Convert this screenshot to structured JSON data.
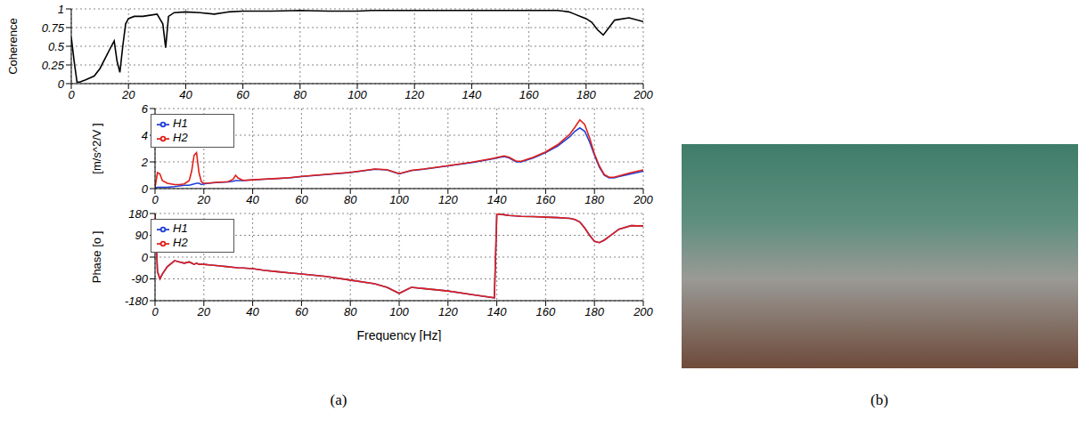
{
  "panel_labels": [
    "(a)",
    "(b)"
  ],
  "chart_data": [
    {
      "type": "line",
      "y_label": "Coherence",
      "xlim": [
        0,
        200
      ],
      "xticks": [
        0,
        20,
        40,
        60,
        80,
        100,
        120,
        140,
        160,
        180,
        200
      ],
      "ylim": [
        0,
        1
      ],
      "yticks": [
        0,
        0.25,
        0.5,
        0.75,
        1
      ],
      "grid": true,
      "x": [
        0,
        1,
        2,
        3,
        5,
        8,
        10,
        12,
        14,
        15,
        16,
        17,
        18,
        19,
        20,
        22,
        25,
        30,
        32,
        33,
        34,
        36,
        40,
        45,
        50,
        55,
        60,
        70,
        80,
        90,
        95,
        100,
        105,
        110,
        120,
        130,
        139,
        140,
        143,
        145,
        148,
        150,
        155,
        160,
        165,
        170,
        172,
        174,
        176,
        178,
        180,
        182,
        184,
        186,
        188,
        190,
        195,
        200
      ],
      "series": [
        {
          "color": "#000000",
          "values": [
            0.62,
            0.3,
            0.02,
            0.02,
            0.05,
            0.1,
            0.2,
            0.35,
            0.5,
            0.57,
            0.3,
            0.15,
            0.5,
            0.8,
            0.87,
            0.9,
            0.9,
            0.93,
            0.8,
            0.48,
            0.9,
            0.95,
            0.96,
            0.95,
            0.93,
            0.96,
            0.97,
            0.97,
            0.98,
            0.97,
            0.97,
            0.97,
            0.98,
            0.98,
            0.98,
            0.98,
            0.98,
            0.98,
            0.98,
            0.98,
            0.98,
            0.98,
            0.98,
            0.98,
            0.98,
            0.98,
            0.97,
            0.96,
            0.93,
            0.9,
            0.87,
            0.82,
            0.72,
            0.65,
            0.75,
            0.85,
            0.88,
            0.83
          ]
        }
      ]
    },
    {
      "type": "line",
      "y_label": "[m/s^2/V ]",
      "xlim": [
        0,
        200
      ],
      "xticks": [
        0,
        20,
        40,
        60,
        80,
        100,
        120,
        140,
        160,
        180,
        200
      ],
      "ylim": [
        0,
        6
      ],
      "yticks": [
        0,
        2,
        4,
        6
      ],
      "grid": true,
      "legend": "upper left",
      "x": [
        0,
        1,
        2,
        3,
        5,
        8,
        10,
        12,
        14,
        15,
        16,
        17,
        18,
        19,
        20,
        22,
        25,
        30,
        32,
        33,
        34,
        36,
        40,
        45,
        50,
        55,
        60,
        70,
        80,
        90,
        95,
        100,
        105,
        110,
        120,
        130,
        139,
        140,
        143,
        145,
        148,
        150,
        155,
        160,
        165,
        170,
        172,
        174,
        176,
        178,
        180,
        182,
        184,
        186,
        188,
        190,
        195,
        200
      ],
      "series": [
        {
          "name": "H1",
          "color": "#1f3fd8",
          "values": [
            0.05,
            0.1,
            0.1,
            0.1,
            0.1,
            0.15,
            0.2,
            0.25,
            0.25,
            0.3,
            0.35,
            0.4,
            0.4,
            0.3,
            0.35,
            0.4,
            0.45,
            0.5,
            0.55,
            0.6,
            0.6,
            0.6,
            0.65,
            0.7,
            0.75,
            0.8,
            0.9,
            1.05,
            1.2,
            1.45,
            1.4,
            1.1,
            1.35,
            1.45,
            1.7,
            1.95,
            2.25,
            2.3,
            2.4,
            2.3,
            2.0,
            2.0,
            2.3,
            2.7,
            3.2,
            3.9,
            4.3,
            4.55,
            4.3,
            3.5,
            2.5,
            1.6,
            1.0,
            0.8,
            0.8,
            0.9,
            1.1,
            1.3
          ]
        },
        {
          "name": "H2",
          "color": "#e0201a",
          "values": [
            0.1,
            1.2,
            1.1,
            0.6,
            0.4,
            0.3,
            0.3,
            0.35,
            0.6,
            1.3,
            2.5,
            2.7,
            1.2,
            0.5,
            0.4,
            0.42,
            0.47,
            0.52,
            0.7,
            1.0,
            0.8,
            0.62,
            0.66,
            0.72,
            0.76,
            0.82,
            0.92,
            1.07,
            1.22,
            1.47,
            1.42,
            1.12,
            1.37,
            1.47,
            1.72,
            1.98,
            2.28,
            2.33,
            2.45,
            2.35,
            2.05,
            2.05,
            2.35,
            2.75,
            3.3,
            4.1,
            4.6,
            5.15,
            4.8,
            3.8,
            2.6,
            1.7,
            1.05,
            0.85,
            0.85,
            0.95,
            1.2,
            1.4
          ]
        }
      ]
    },
    {
      "type": "line",
      "y_label": "Phase [o ]",
      "x_label": "Frequency [Hz]",
      "xlim": [
        0,
        200
      ],
      "xticks": [
        0,
        20,
        40,
        60,
        80,
        100,
        120,
        140,
        160,
        180,
        200
      ],
      "ylim": [
        -180,
        180
      ],
      "yticks": [
        -180,
        -90,
        0,
        90,
        180
      ],
      "grid": true,
      "legend": "upper left",
      "x": [
        0,
        1,
        2,
        3,
        5,
        8,
        10,
        12,
        14,
        15,
        16,
        17,
        18,
        19,
        20,
        22,
        25,
        30,
        32,
        33,
        34,
        36,
        40,
        45,
        50,
        55,
        60,
        70,
        80,
        90,
        95,
        100,
        105,
        110,
        120,
        130,
        139,
        140,
        143,
        145,
        148,
        150,
        155,
        160,
        165,
        170,
        172,
        174,
        176,
        178,
        180,
        182,
        184,
        186,
        188,
        190,
        195,
        200
      ],
      "series": [
        {
          "name": "H1",
          "color": "#1f3fd8",
          "values": [
            180,
            -60,
            -90,
            -70,
            -40,
            -15,
            -20,
            -25,
            -20,
            -25,
            -30,
            -25,
            -30,
            -30,
            -30,
            -32,
            -35,
            -40,
            -42,
            -43,
            -44,
            -45,
            -48,
            -55,
            -60,
            -65,
            -70,
            -80,
            -95,
            -110,
            -125,
            -150,
            -125,
            -130,
            -140,
            -155,
            -168,
            178,
            175,
            172,
            170,
            168,
            167,
            165,
            163,
            160,
            155,
            145,
            120,
            90,
            65,
            60,
            70,
            85,
            100,
            115,
            130,
            128
          ]
        },
        {
          "name": "H2",
          "color": "#e0201a",
          "values": [
            180,
            -60,
            -90,
            -70,
            -40,
            -15,
            -20,
            -25,
            -20,
            -25,
            -30,
            -25,
            -30,
            -30,
            -30,
            -32,
            -35,
            -40,
            -42,
            -43,
            -44,
            -45,
            -48,
            -55,
            -60,
            -65,
            -70,
            -80,
            -95,
            -110,
            -125,
            -150,
            -125,
            -130,
            -140,
            -155,
            -168,
            178,
            175,
            172,
            170,
            168,
            167,
            165,
            163,
            160,
            155,
            145,
            120,
            90,
            65,
            60,
            70,
            85,
            100,
            115,
            130,
            128
          ]
        }
      ]
    }
  ]
}
